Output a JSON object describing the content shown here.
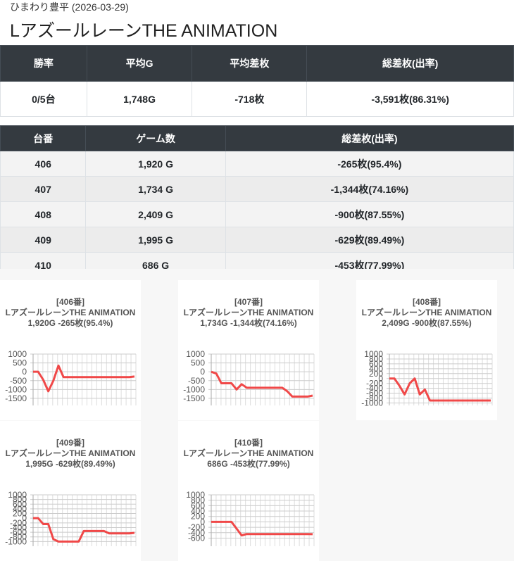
{
  "header": {
    "store": "ひまわり豊平 (2026-03-29)",
    "title": "LアズールレーンTHE ANIMATION"
  },
  "summary_table": {
    "columns": [
      "勝率",
      "平均G",
      "平均差枚",
      "総差枚(出率)"
    ],
    "rows": [
      [
        "0/5台",
        "1,748G",
        "-718枚",
        "-3,591枚(86.31%)"
      ]
    ]
  },
  "machine_table": {
    "columns": [
      "台番",
      "ゲーム数",
      "総差枚(出率)"
    ],
    "rows": [
      [
        "406",
        "1,920 G",
        "-265枚(95.4%)"
      ],
      [
        "407",
        "1,734 G",
        "-1,344枚(74.16%)"
      ],
      [
        "408",
        "2,409 G",
        "-900枚(87.55%)"
      ],
      [
        "409",
        "1,995 G",
        "-629枚(89.49%)"
      ],
      [
        "410",
        "686 G",
        "-453枚(77.99%)"
      ]
    ]
  },
  "chart_data": [
    {
      "type": "line",
      "title_lines": [
        "[406番]",
        "LアズールレーンTHE ANIMATION",
        "1,920G -265枚(95.4%)"
      ],
      "ylim": [
        -1900,
        1000
      ],
      "yticks": [
        1000,
        500,
        0,
        -500,
        -1000,
        -1500
      ],
      "grid": true,
      "color": "#f04848",
      "values": [
        0,
        0,
        -450,
        -1100,
        -500,
        350,
        -300,
        -300,
        -300,
        -300,
        -300,
        -300,
        -300,
        -300,
        -300,
        -300,
        -300,
        -300,
        -300,
        -300,
        -265
      ]
    },
    {
      "type": "line",
      "title_lines": [
        "[407番]",
        "LアズールレーンTHE ANIMATION",
        "1,734G -1,344枚(74.16%)"
      ],
      "ylim": [
        -1900,
        1000
      ],
      "yticks": [
        1000,
        500,
        0,
        -500,
        -1000,
        -1500
      ],
      "grid": true,
      "color": "#f04848",
      "values": [
        0,
        -100,
        -650,
        -650,
        -650,
        -1000,
        -700,
        -900,
        -900,
        -900,
        -900,
        -900,
        -900,
        -900,
        -900,
        -1100,
        -1400,
        -1400,
        -1400,
        -1400,
        -1344
      ]
    },
    {
      "type": "line",
      "title_lines": [
        "[408番]",
        "LアズールレーンTHE ANIMATION",
        "2,409G -900枚(87.55%)"
      ],
      "ylim": [
        -1100,
        1000
      ],
      "yticks": [
        1000,
        800,
        600,
        400,
        200,
        0,
        -200,
        -400,
        -600,
        -800,
        -1000
      ],
      "grid": true,
      "color": "#f04848",
      "values": [
        0,
        0,
        -300,
        -650,
        -200,
        0,
        -650,
        -450,
        -900,
        -900,
        -900,
        -900,
        -900,
        -900,
        -900,
        -900,
        -900,
        -900,
        -900,
        -900,
        -900
      ]
    },
    {
      "type": "line",
      "title_lines": [
        "[409番]",
        "LアズールレーンTHE ANIMATION",
        "1,995G -629枚(89.49%)"
      ],
      "ylim": [
        -1200,
        1000
      ],
      "yticks": [
        1000,
        800,
        600,
        400,
        200,
        0,
        -200,
        -400,
        -600,
        -800,
        -1000
      ],
      "grid": true,
      "color": "#f04848",
      "values": [
        0,
        0,
        -250,
        -250,
        -900,
        -1000,
        -1000,
        -1000,
        -1000,
        -1000,
        -550,
        -550,
        -550,
        -550,
        -550,
        -650,
        -650,
        -650,
        -650,
        -650,
        -629
      ]
    },
    {
      "type": "line",
      "title_lines": [
        "[410番]",
        "LアズールレーンTHE ANIMATION",
        "686G -453枚(77.99%)"
      ],
      "ylim": [
        -900,
        1000
      ],
      "yticks": [
        1000,
        800,
        600,
        400,
        200,
        0,
        -200,
        -400,
        -600
      ],
      "grid": true,
      "color": "#f04848",
      "values": [
        0,
        0,
        0,
        0,
        0,
        -250,
        -500,
        -450,
        -450,
        -450,
        -450,
        -450,
        -450,
        -450,
        -450,
        -450,
        -450,
        -450,
        -450,
        -450,
        -453
      ]
    }
  ]
}
